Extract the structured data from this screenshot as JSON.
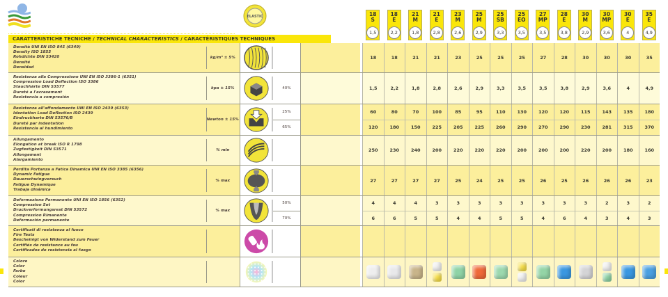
{
  "title": {
    "it": "CARATTERISTICHE TECNICHE",
    "sep1": " / ",
    "en": "TECHNICAL CHARACTERISTICS",
    "sep2": " / ",
    "fr": "CARACTÉRISTIQUES TECHNIQUES"
  },
  "logo_text": "ELASTIC",
  "accent_color": "#fae60a",
  "products": [
    {
      "density": "18",
      "code": "S",
      "hardness": "1,5"
    },
    {
      "density": "18",
      "code": "E",
      "hardness": "2,2"
    },
    {
      "density": "21",
      "code": "M",
      "hardness": "1,8"
    },
    {
      "density": "21",
      "code": "E",
      "hardness": "2,8"
    },
    {
      "density": "23",
      "code": "M",
      "hardness": "2,6"
    },
    {
      "density": "25",
      "code": "M",
      "hardness": "2,9"
    },
    {
      "density": "25",
      "code": "SB",
      "hardness": "3,3"
    },
    {
      "density": "25",
      "code": "EO",
      "hardness": "3,5"
    },
    {
      "density": "27",
      "code": "MP",
      "hardness": "3,5"
    },
    {
      "density": "28",
      "code": "E",
      "hardness": "3,8"
    },
    {
      "density": "30",
      "code": "M",
      "hardness": "2,9"
    },
    {
      "density": "30",
      "code": "MP",
      "hardness": "3,6"
    },
    {
      "density": "30",
      "code": "E",
      "hardness": "4"
    },
    {
      "density": "35",
      "code": "E",
      "hardness": "4,9"
    }
  ],
  "rows": [
    {
      "lines": [
        "Densità UNI EN ISO 845 (6349)",
        "Density ISO 1855",
        "Rohdichte DIN 53420",
        "Densité",
        "Densidad"
      ],
      "unit": "kg/m³ ± 5%",
      "icon": "density-icon",
      "sub": [
        ""
      ],
      "bg": "#fcef9c",
      "values": [
        [
          "18",
          "18",
          "21",
          "21",
          "23",
          "25",
          "25",
          "25",
          "27",
          "28",
          "30",
          "30",
          "30",
          "35"
        ]
      ]
    },
    {
      "lines": [
        "Resistenza alla Compressione UNI EN ISO 3386-1 (6351)",
        "Compression Load Deflection ISO 3386",
        "Stauchhärte DIN 53577",
        "Dureté a l'ecrasement",
        "Resistencia a compresión"
      ],
      "unit": "kpa ± 15%",
      "icon": "compression-icon",
      "sub": [
        "40%"
      ],
      "bg": "#fefbd9",
      "values": [
        [
          "1,5",
          "2,2",
          "1,8",
          "2,8",
          "2,6",
          "2,9",
          "3,3",
          "3,5",
          "3,5",
          "3,8",
          "2,9",
          "3,6",
          "4",
          "4,9"
        ]
      ]
    },
    {
      "lines": [
        "Resistenza all'affondamento UNI EN ISO 2439 (6353)",
        "Identation Load Deflection ISO 2439",
        "Eindruckharte DIN 53576/B",
        "Dureté par indentation",
        "Resistencia al hundimiento"
      ],
      "unit": "Newton ± 15%",
      "icon": "indentation-icon",
      "sub": [
        "25%",
        "65%"
      ],
      "bg": "#fcef9c",
      "values": [
        [
          "60",
          "80",
          "70",
          "100",
          "85",
          "95",
          "110",
          "130",
          "120",
          "120",
          "115",
          "143",
          "135",
          "180"
        ],
        [
          "120",
          "180",
          "150",
          "225",
          "205",
          "225",
          "260",
          "290",
          "270",
          "290",
          "230",
          "281",
          "315",
          "370"
        ]
      ]
    },
    {
      "lines": [
        "Allungamento",
        "Elongation at break ISO R 1798",
        "Zugfestigkeit DIN 53571",
        "Allongement",
        "Alargamiento"
      ],
      "unit": "% min",
      "icon": "elongation-icon",
      "sub": [
        ""
      ],
      "bg": "#fef8cc",
      "values": [
        [
          "250",
          "230",
          "240",
          "200",
          "220",
          "220",
          "220",
          "200",
          "200",
          "200",
          "220",
          "200",
          "180",
          "160"
        ]
      ]
    },
    {
      "lines": [
        "Perdita Portanza a Fatica Dinamica UNI EN ISO 3385 (6356)",
        "Dynamic Fatigue",
        "Dauerschwingversuch",
        "Fatigue Dynamique",
        "Trabaja dinámica"
      ],
      "unit": "% max",
      "icon": "dynamic-fatigue-icon",
      "sub": [
        ""
      ],
      "bg": "#fcef9c",
      "values": [
        [
          "27",
          "27",
          "27",
          "27",
          "25",
          "24",
          "25",
          "25",
          "26",
          "25",
          "26",
          "26",
          "26",
          "23"
        ]
      ]
    },
    {
      "lines": [
        "Deformazione Permanente UNI EN ISO 1856 (6352)",
        "Compression Set",
        "Druckverformungsrest DIN 53572",
        "Compression Rimanente",
        "Deformación permanente"
      ],
      "unit": "% max",
      "icon": "compression-set-icon",
      "sub": [
        "50%",
        "70%"
      ],
      "bg": "#fef8cc",
      "values": [
        [
          "4",
          "4",
          "4",
          "3",
          "3",
          "3",
          "3",
          "3",
          "3",
          "3",
          "3",
          "2",
          "3",
          "2"
        ],
        [
          "6",
          "6",
          "5",
          "5",
          "4",
          "4",
          "5",
          "5",
          "4",
          "6",
          "4",
          "3",
          "4",
          "3"
        ]
      ]
    },
    {
      "lines": [
        "Certificati di resistenza al fuoco",
        "Fire Tests",
        "Bescheinigt von Widerstand zum Feuer",
        "Certifiés de resistance au feu",
        "Certificados de resistencia al fuego"
      ],
      "unit": "",
      "icon": "fire-extinguisher-icon",
      "sub": [
        ""
      ],
      "bg": "#fcef9c",
      "values": [
        [
          "",
          "",
          "",
          "",
          "",
          "",
          "",
          "",
          "",
          "",
          "",
          "",
          "",
          ""
        ]
      ]
    },
    {
      "lines": [
        "Colore",
        "Color",
        "Farbe",
        "Coleur",
        "Color"
      ],
      "unit": "",
      "icon": "color-sphere-icon",
      "sub": [
        ""
      ],
      "bg": "#fef6c4",
      "colors": [
        [
          "#eeeeee"
        ],
        [
          "#e8e8ea"
        ],
        [
          "#c8b48a"
        ],
        [
          "#eeeeee",
          "#f7df4a"
        ],
        [
          "#8fd3a6"
        ],
        [
          "#ef6a3a"
        ],
        [
          "#9cd8ae"
        ],
        [
          "#f7df4a",
          "#eeeeee"
        ],
        [
          "#94d4a6"
        ],
        [
          "#3a97e0"
        ],
        [
          "#d4d4d6"
        ],
        [
          "#eeeeee",
          "#8fd3a6"
        ],
        [
          "#3a97e0"
        ],
        [
          "#4a9fe0"
        ]
      ]
    }
  ]
}
